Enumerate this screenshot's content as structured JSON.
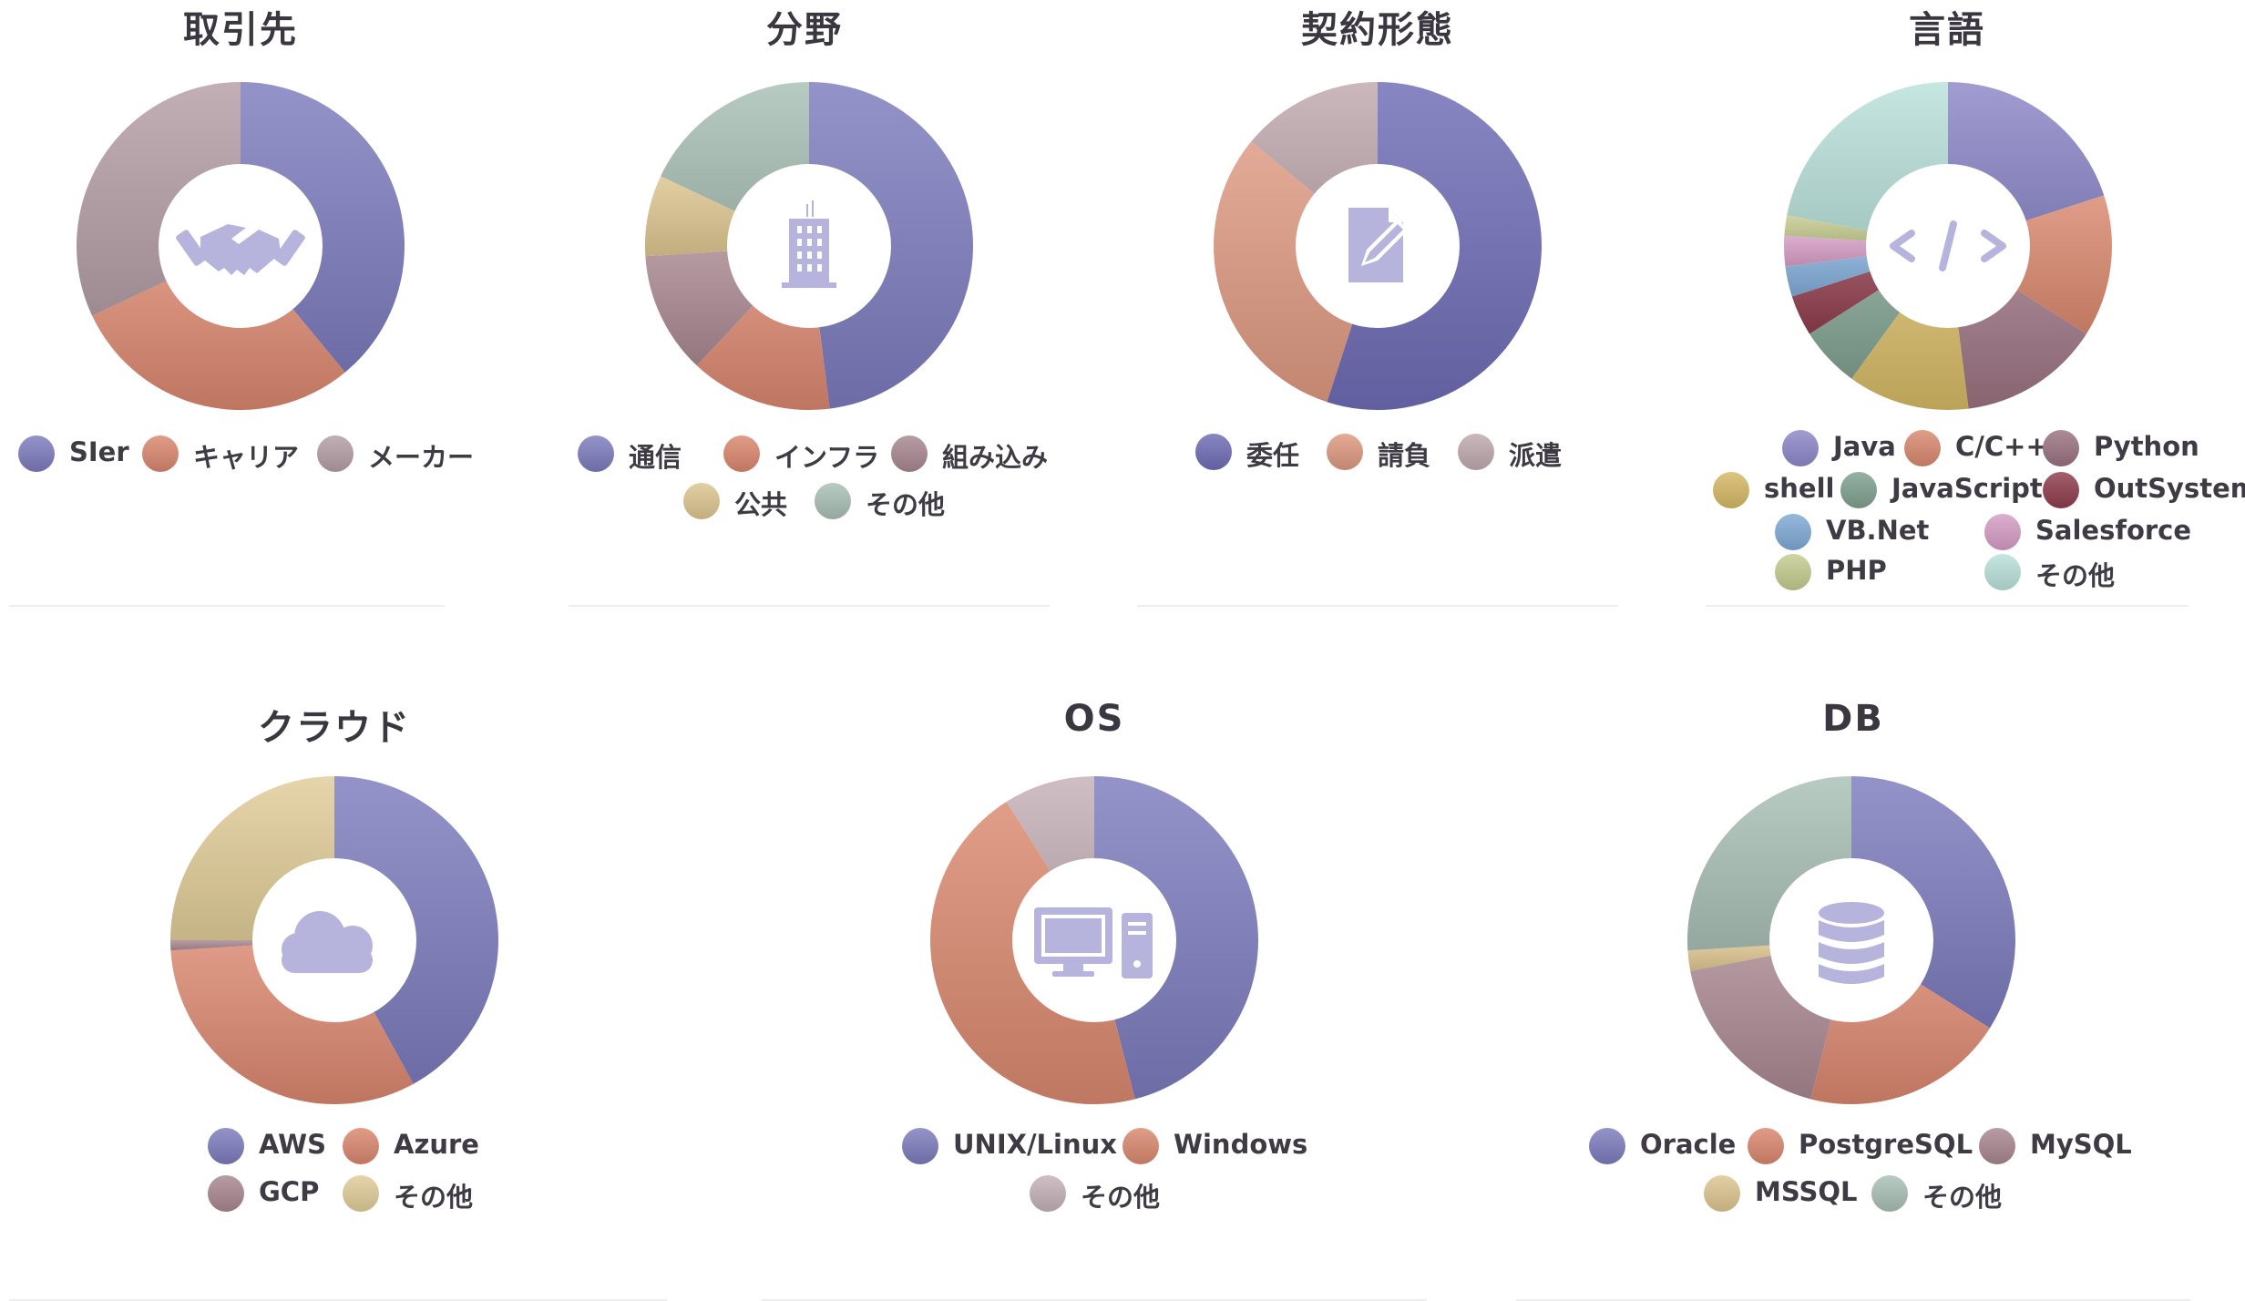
{
  "chart_data": [
    {
      "type": "pie",
      "title": "取引先",
      "icon": "handshake-icon",
      "categories": [
        "SIer",
        "キャリア",
        "メーカー"
      ],
      "values": [
        39,
        29,
        32
      ],
      "colors": [
        "#7c7bbd",
        "#d9866e",
        "#b49ea5"
      ]
    },
    {
      "type": "pie",
      "title": "分野",
      "icon": "building-icon",
      "categories": [
        "通信",
        "インフラ",
        "組み込み",
        "公共",
        "その他"
      ],
      "values": [
        48,
        14,
        12,
        8,
        18
      ],
      "colors": [
        "#7c7bbd",
        "#d9866e",
        "#a88690",
        "#dcc58f",
        "#a9bfb5"
      ]
    },
    {
      "type": "pie",
      "title": "契約形態",
      "icon": "contract-icon",
      "categories": [
        "委任",
        "請負",
        "派遣"
      ],
      "values": [
        55,
        31,
        14
      ],
      "colors": [
        "#6e6cb5",
        "#dd9880",
        "#bfa9af"
      ]
    },
    {
      "type": "pie",
      "title": "言語",
      "icon": "code-icon",
      "categories": [
        "Java",
        "C/C++",
        "Python",
        "shell",
        "JavaScript",
        "OutSystems",
        "VB.Net",
        "Salesforce",
        "PHP",
        "その他"
      ],
      "values": [
        20,
        14,
        14,
        12,
        6,
        4,
        3,
        3,
        2,
        22
      ],
      "colors": [
        "#8c87c8",
        "#d9886e",
        "#9a7280",
        "#d5b865",
        "#7fa08f",
        "#8e3c4c",
        "#7fa9d6",
        "#d59cc4",
        "#c5cb8f",
        "#b9e1d9"
      ]
    },
    {
      "type": "pie",
      "title": "クラウド",
      "icon": "cloud-icon",
      "categories": [
        "AWS",
        "Azure",
        "GCP",
        "その他"
      ],
      "values": [
        42,
        32,
        1,
        25
      ],
      "colors": [
        "#7c7bbd",
        "#d9866e",
        "#a88690",
        "#e0cc97"
      ]
    },
    {
      "type": "pie",
      "title": "OS",
      "icon": "desktop-computer-icon",
      "categories": [
        "UNIX/Linux",
        "Windows",
        "その他"
      ],
      "values": [
        46,
        45,
        9
      ],
      "colors": [
        "#7c7bbd",
        "#d9886e",
        "#c4b0b7"
      ]
    },
    {
      "type": "pie",
      "title": "DB",
      "icon": "database-icon",
      "categories": [
        "Oracle",
        "PostgreSQL",
        "MySQL",
        "MSSQL",
        "その他"
      ],
      "values": [
        34,
        20,
        18,
        2,
        26
      ],
      "colors": [
        "#7c7bbd",
        "#d9866e",
        "#a88690",
        "#dcc58f",
        "#a9bfb5"
      ]
    }
  ]
}
